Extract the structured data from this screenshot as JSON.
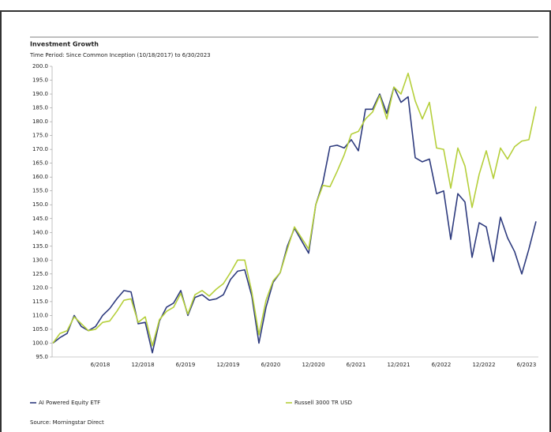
{
  "chart_data": {
    "type": "line",
    "title": "Investment Growth",
    "subtitle": "Time Period: Since Common Inception (10/18/2017) to 6/30/2023",
    "source": "Source: Morningstar Direct",
    "categories": [
      null,
      null,
      null,
      null,
      null,
      null,
      null,
      null,
      "6/2018",
      null,
      null,
      null,
      null,
      null,
      "12/2018",
      null,
      null,
      null,
      null,
      null,
      "6/2019",
      null,
      null,
      null,
      null,
      null,
      "12/2019",
      null,
      null,
      null,
      null,
      null,
      "6/2020",
      null,
      null,
      null,
      null,
      null,
      "12/2020",
      null,
      null,
      null,
      null,
      null,
      "6/2021",
      null,
      null,
      null,
      null,
      null,
      "12/2021",
      null,
      null,
      null,
      null,
      null,
      "6/2022",
      null,
      null,
      null,
      null,
      null,
      "12/2022",
      null,
      null,
      null,
      null,
      null,
      "6/2023"
    ],
    "series": [
      {
        "name": "AI Powered Equity ETF",
        "color": "#2e3b7e",
        "values": [
          100,
          102,
          103.5,
          110,
          106,
          104.5,
          106,
          110,
          112.5,
          116,
          119,
          118.5,
          107,
          107.5,
          96.5,
          108,
          113,
          114.5,
          119,
          110,
          116.5,
          117.5,
          115.5,
          116,
          117.5,
          123,
          126,
          126.5,
          117,
          100,
          113,
          122,
          125.5,
          135,
          141.5,
          137,
          132.5,
          150,
          158,
          171,
          171.5,
          170.5,
          173.5,
          169.5,
          184.5,
          184.5,
          190,
          183,
          192.5,
          187,
          189,
          167,
          165.5,
          166.5,
          154,
          155,
          137.5,
          154,
          151,
          131,
          143.5,
          142,
          129.5,
          145.5,
          138,
          133,
          125,
          134,
          144
        ]
      },
      {
        "name": "Russell 3000 TR USD",
        "color": "#b5cf3a",
        "values": [
          100,
          103.5,
          104.5,
          109.5,
          107,
          104.5,
          105,
          107.5,
          108,
          111.5,
          115.5,
          116,
          107.5,
          109.5,
          99,
          108.5,
          111.5,
          113,
          118,
          110.5,
          117.5,
          119,
          117,
          119.5,
          121.5,
          125.5,
          130,
          130,
          118.5,
          103,
          115.5,
          122.5,
          125.5,
          134,
          142,
          138,
          134,
          150,
          157,
          156.5,
          162,
          168,
          175.5,
          176.5,
          181,
          183.5,
          189.5,
          181,
          192.5,
          190,
          197.5,
          187.5,
          181,
          187,
          170.5,
          170,
          156,
          170.5,
          164,
          149,
          161,
          169.5,
          159.5,
          170.5,
          166.5,
          171,
          173,
          173.5,
          185.5
        ]
      }
    ],
    "ylim": [
      95,
      200
    ],
    "yticks": [
      {
        "value": 95,
        "label": "95.0"
      },
      {
        "value": 100,
        "label": "100.0"
      },
      {
        "value": 105,
        "label": "105.0"
      },
      {
        "value": 110,
        "label": "110.0"
      },
      {
        "value": 115,
        "label": "115.0"
      },
      {
        "value": 120,
        "label": "120.0"
      },
      {
        "value": 125,
        "label": "125.0"
      },
      {
        "value": 130,
        "label": "130.0"
      },
      {
        "value": 135,
        "label": "135.0"
      },
      {
        "value": 140,
        "label": "140.0"
      },
      {
        "value": 145,
        "label": "145.0"
      },
      {
        "value": 150,
        "label": "150.0"
      },
      {
        "value": 155,
        "label": "155.0"
      },
      {
        "value": 160,
        "label": "160.0"
      },
      {
        "value": 165,
        "label": "165.0"
      },
      {
        "value": 170,
        "label": "170.0"
      },
      {
        "value": 175,
        "label": "175.0"
      },
      {
        "value": 180,
        "label": "180.0"
      },
      {
        "value": 185,
        "label": "185.0"
      },
      {
        "value": 190,
        "label": "190.0"
      },
      {
        "value": 195,
        "label": "195.0"
      },
      {
        "value": 200,
        "label": "200.0"
      }
    ],
    "grid": false,
    "legend": "bottom"
  }
}
